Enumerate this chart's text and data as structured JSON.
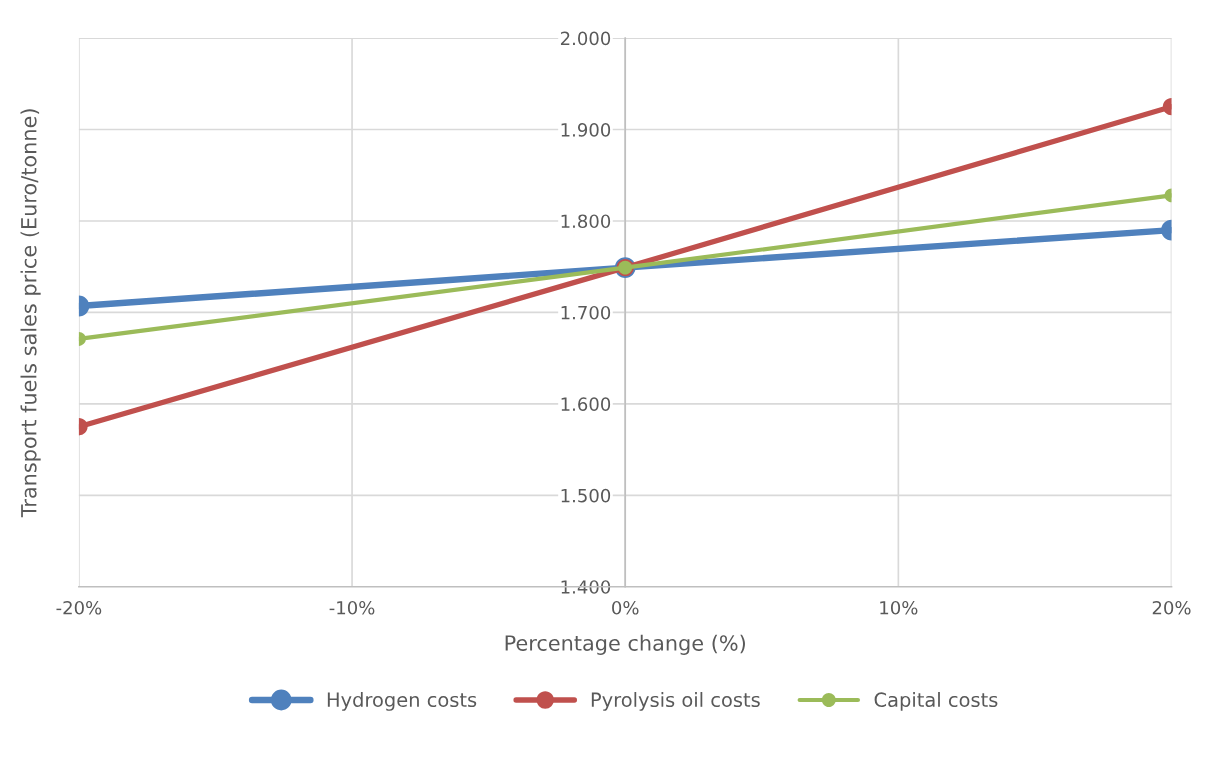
{
  "chart_data": {
    "type": "line",
    "xlabel": "Percentage change (%)",
    "ylabel": "Transport fuels sales price (Euro/tonne)",
    "x": [
      -20,
      0,
      20
    ],
    "series": [
      {
        "name": "Hydrogen costs",
        "color": "#4f81bd",
        "values": [
          1707,
          1749,
          1790
        ]
      },
      {
        "name": "Pyrolysis oil costs",
        "color": "#c0504d",
        "values": [
          1575,
          1749,
          1925
        ]
      },
      {
        "name": "Capital costs",
        "color": "#9bbb59",
        "values": [
          1671,
          1749,
          1828
        ]
      }
    ],
    "xlim": [
      -20,
      20
    ],
    "xticks": [
      {
        "value": -20,
        "label": "-20%"
      },
      {
        "value": -10,
        "label": "-10%"
      },
      {
        "value": 0,
        "label": "0%"
      },
      {
        "value": 10,
        "label": "10%"
      },
      {
        "value": 20,
        "label": "20%"
      }
    ],
    "ylim": [
      1400,
      2000
    ],
    "yticks": [
      {
        "value": 1400,
        "label": "1.400"
      },
      {
        "value": 1500,
        "label": "1.500"
      },
      {
        "value": 1600,
        "label": "1.600"
      },
      {
        "value": 1700,
        "label": "1.700"
      },
      {
        "value": 1800,
        "label": "1.800"
      },
      {
        "value": 1900,
        "label": "1.900"
      },
      {
        "value": 2000,
        "label": "2.000"
      }
    ],
    "grid": true,
    "legend": "bottom",
    "marker": "circle",
    "line_style": "solid"
  }
}
